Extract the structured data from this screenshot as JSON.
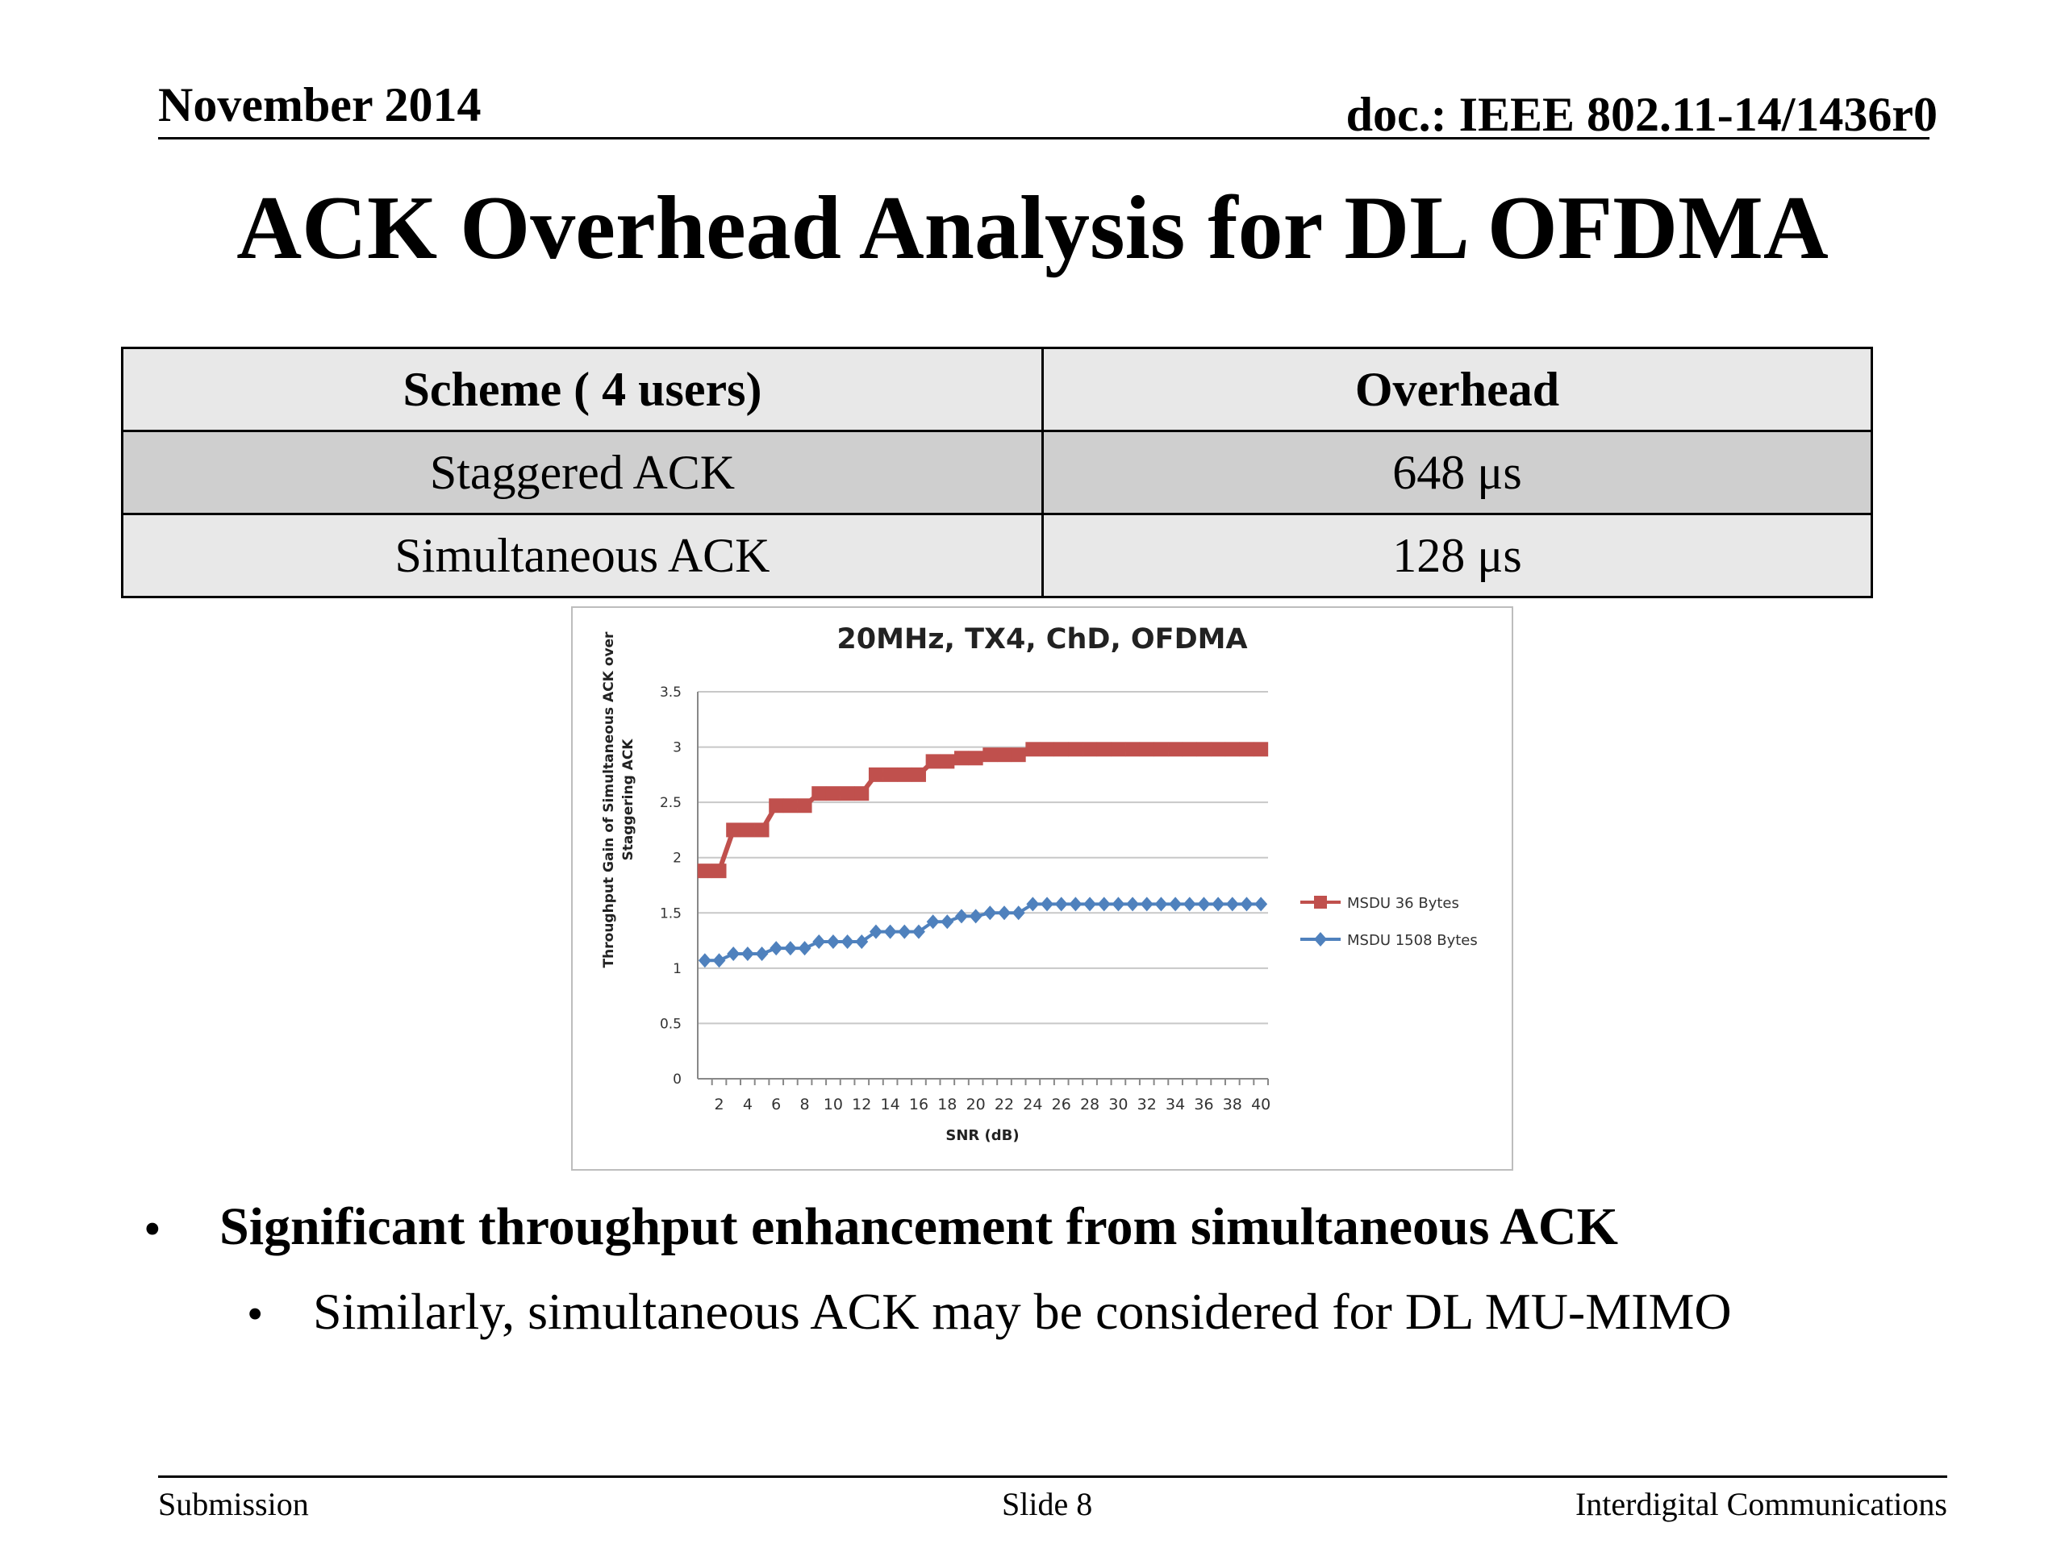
{
  "header": {
    "date": "November 2014",
    "doc": "doc.: IEEE 802.11-14/1436r0"
  },
  "title": "ACK Overhead Analysis for DL OFDMA",
  "table": {
    "headers": [
      "Scheme ( 4 users)",
      "Overhead"
    ],
    "rows": [
      [
        "Staggered ACK",
        "648 μs"
      ],
      [
        "Simultaneous ACK",
        "128 μs"
      ]
    ]
  },
  "chart_data": {
    "type": "line",
    "title": "20MHz, TX4, ChD, OFDMA",
    "xlabel": "SNR (dB)",
    "ylabel_lines": [
      "Throughput Gain of Simultaneous ACK over",
      "Staggering ACK"
    ],
    "x": [
      1,
      2,
      3,
      4,
      5,
      6,
      7,
      8,
      9,
      10,
      11,
      12,
      13,
      14,
      15,
      16,
      17,
      18,
      19,
      20,
      21,
      22,
      23,
      24,
      25,
      26,
      27,
      28,
      29,
      30,
      31,
      32,
      33,
      34,
      35,
      36,
      37,
      38,
      39,
      40
    ],
    "x_tick_labels": [
      "2",
      "4",
      "6",
      "8",
      "10",
      "12",
      "14",
      "16",
      "18",
      "20",
      "22",
      "24",
      "26",
      "28",
      "30",
      "32",
      "34",
      "36",
      "38",
      "40"
    ],
    "ylim": [
      0,
      3.5
    ],
    "y_ticks": [
      "0",
      "0.5",
      "1",
      "1.5",
      "2",
      "2.5",
      "3",
      "3.5"
    ],
    "grid": true,
    "legend_position": "right",
    "series": [
      {
        "name": "MSDU 36 Bytes",
        "color": "#c0504d",
        "marker": "square",
        "values": [
          1.88,
          1.88,
          2.25,
          2.25,
          2.25,
          2.47,
          2.47,
          2.47,
          2.58,
          2.58,
          2.58,
          2.58,
          2.75,
          2.75,
          2.75,
          2.75,
          2.87,
          2.87,
          2.9,
          2.9,
          2.93,
          2.93,
          2.93,
          2.98,
          2.98,
          2.98,
          2.98,
          2.98,
          2.98,
          2.98,
          2.98,
          2.98,
          2.98,
          2.98,
          2.98,
          2.98,
          2.98,
          2.98,
          2.98,
          2.98
        ]
      },
      {
        "name": "MSDU 1508 Bytes",
        "color": "#4f81bd",
        "marker": "diamond",
        "values": [
          1.07,
          1.07,
          1.13,
          1.13,
          1.13,
          1.18,
          1.18,
          1.18,
          1.24,
          1.24,
          1.24,
          1.24,
          1.33,
          1.33,
          1.33,
          1.33,
          1.42,
          1.42,
          1.47,
          1.47,
          1.5,
          1.5,
          1.5,
          1.58,
          1.58,
          1.58,
          1.58,
          1.58,
          1.58,
          1.58,
          1.58,
          1.58,
          1.58,
          1.58,
          1.58,
          1.58,
          1.58,
          1.58,
          1.58,
          1.58
        ]
      }
    ]
  },
  "bullets": {
    "main": "Significant throughput enhancement from simultaneous ACK",
    "sub": "Similarly, simultaneous ACK may be considered for DL MU-MIMO"
  },
  "footer": {
    "left": "Submission",
    "center": "Slide 8",
    "right": "Interdigital Communications"
  }
}
